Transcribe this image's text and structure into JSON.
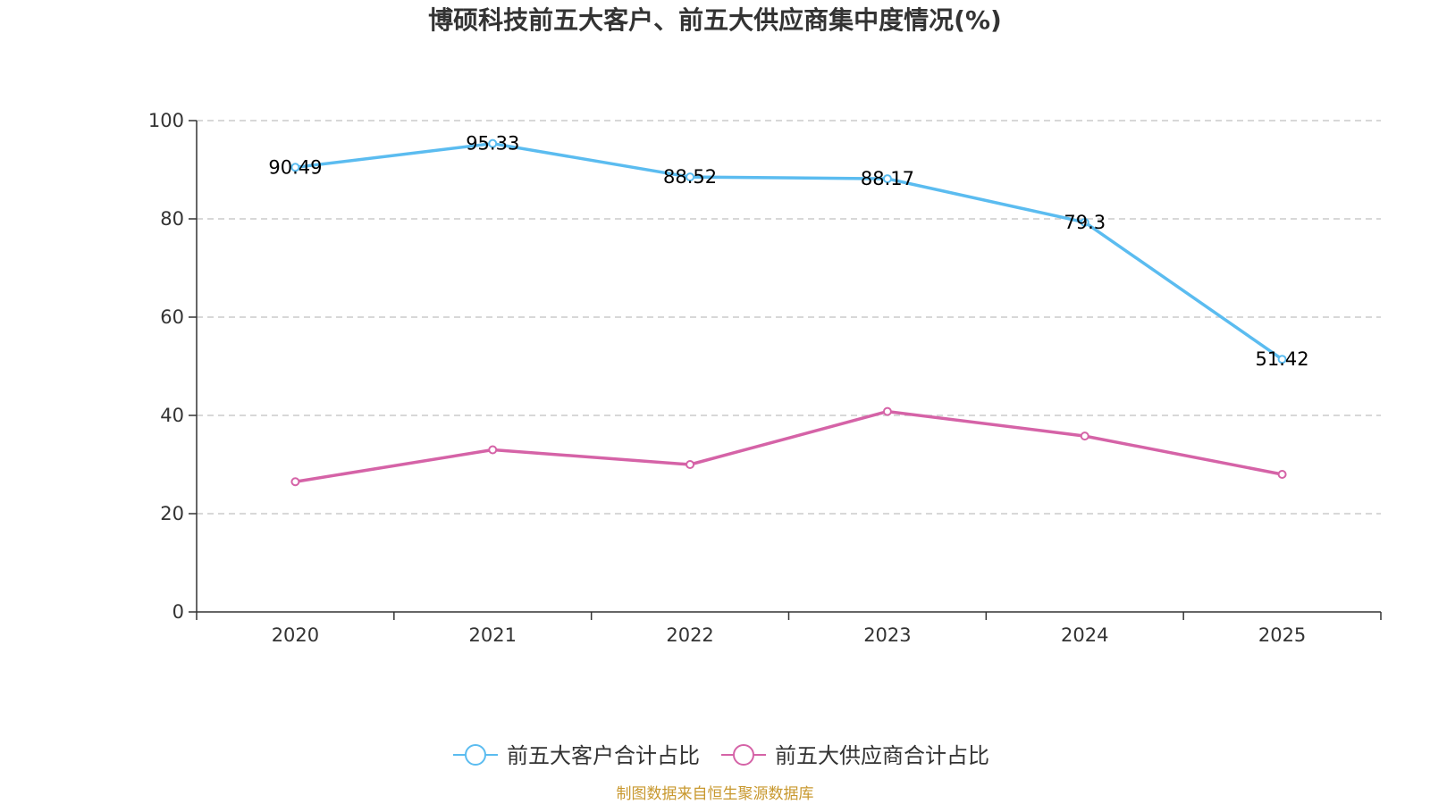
{
  "chart_data": {
    "type": "line",
    "title": "博硕科技前五大客户、前五大供应商集中度情况(%)",
    "categories": [
      "2020",
      "2021",
      "2022",
      "2023",
      "2024",
      "2025"
    ],
    "ylim": [
      0,
      100
    ],
    "yticks": [
      0,
      20,
      40,
      60,
      80,
      100
    ],
    "grid": true,
    "legend_position": "bottom-center",
    "series": [
      {
        "name": "前五大客户合计占比",
        "color": "#5bbcf0",
        "values": [
          90.49,
          95.33,
          88.52,
          88.17,
          79.3,
          51.42
        ],
        "value_labels": [
          "90.49",
          "95.33",
          "88.52",
          "88.17",
          "79.3",
          "51.42"
        ],
        "show_labels": true
      },
      {
        "name": "前五大供应商合计占比",
        "color": "#d563a7",
        "values": [
          26.5,
          33.0,
          30.0,
          40.8,
          35.8,
          28.0
        ],
        "value_labels": [],
        "show_labels": false
      }
    ],
    "source": "制图数据来自恒生聚源数据库",
    "source_color": "#c8982e"
  }
}
